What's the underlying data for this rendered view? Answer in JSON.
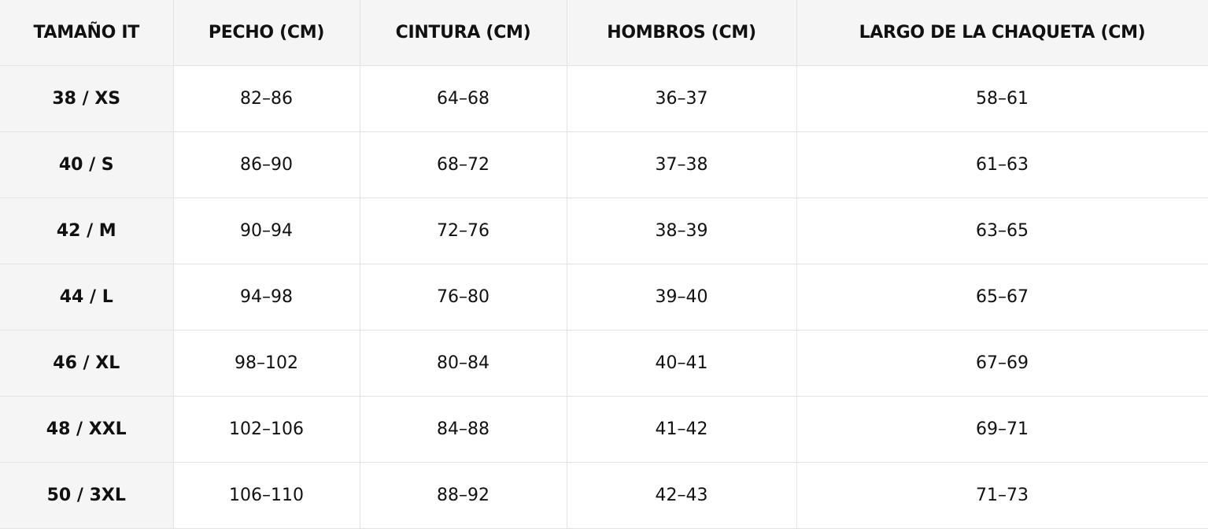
{
  "table": {
    "header": [
      "TAMAÑO IT",
      "PECHO (CM)",
      "CINTURA (CM)",
      "HOMBROS (CM)",
      "LARGO DE LA CHAQUETA (CM)"
    ],
    "rows": [
      [
        "38 / XS",
        "82–86",
        "64–68",
        "36–37",
        "58–61"
      ],
      [
        "40 / S",
        "86–90",
        "68–72",
        "37–38",
        "61–63"
      ],
      [
        "42 / M",
        "90–94",
        "72–76",
        "38–39",
        "63–65"
      ],
      [
        "44 / L",
        "94–98",
        "76–80",
        "39–40",
        "65–67"
      ],
      [
        "46 / XL",
        "98–102",
        "80–84",
        "40–41",
        "67–69"
      ],
      [
        "48 / XXL",
        "102–106",
        "84–88",
        "41–42",
        "69–71"
      ],
      [
        "50 / 3XL",
        "106–110",
        "88–92",
        "42–43",
        "71–73"
      ]
    ]
  }
}
